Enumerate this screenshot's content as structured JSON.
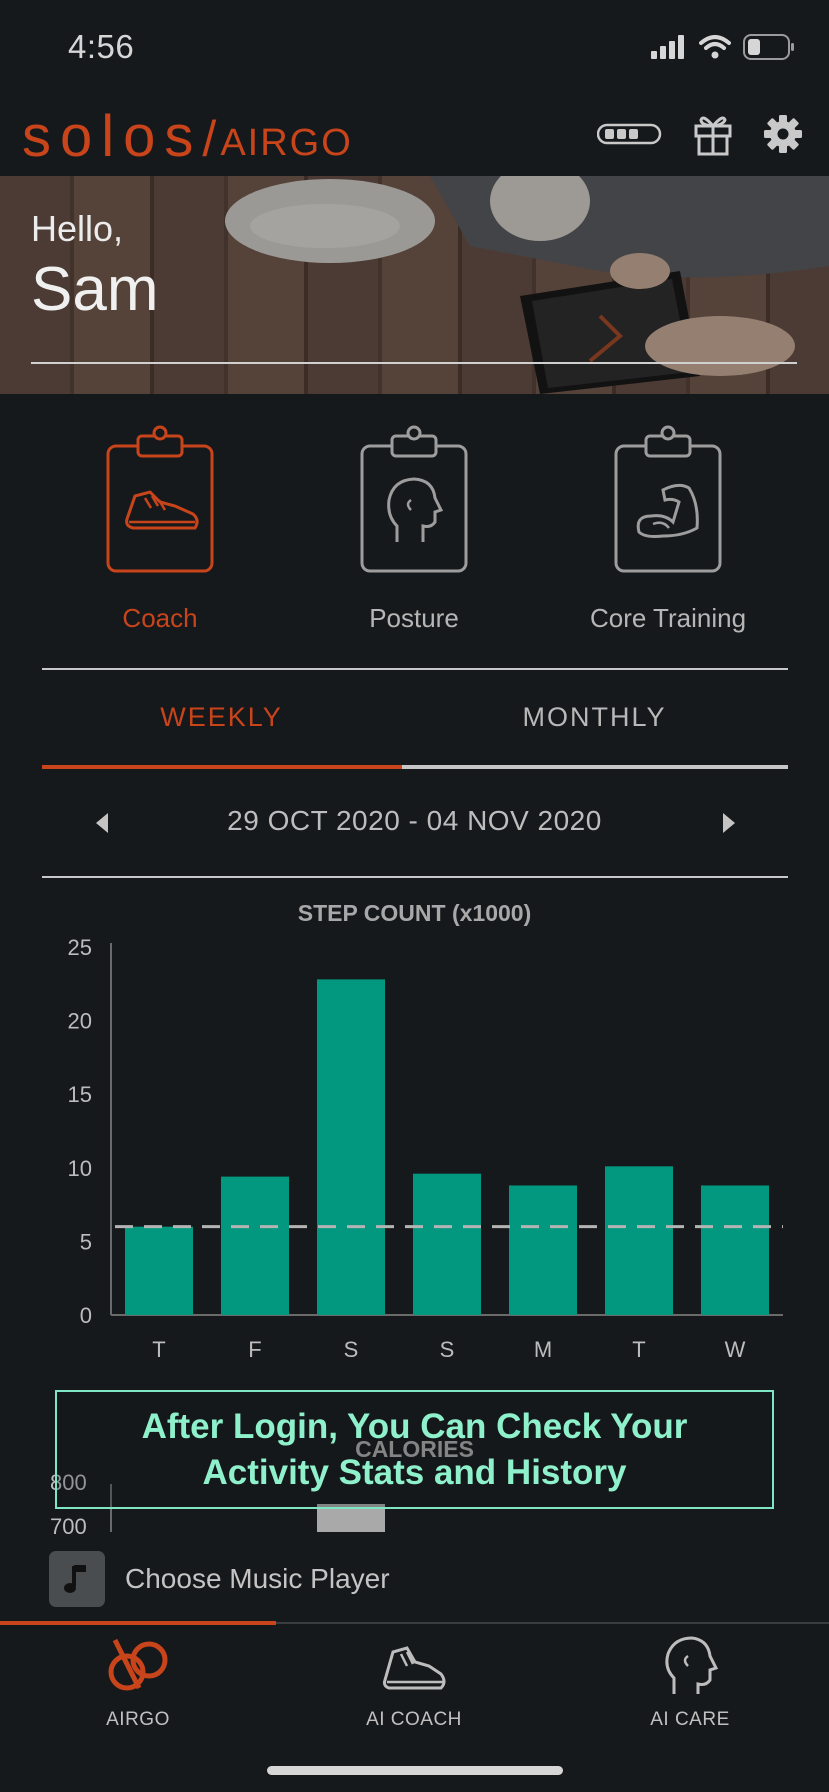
{
  "status_bar": {
    "time": "4:56"
  },
  "header": {
    "brand_solos": "solos",
    "brand_airgo": "AIRGO"
  },
  "hero": {
    "greeting": "Hello,",
    "name": "Sam"
  },
  "programs": [
    {
      "label": "Coach",
      "active": true
    },
    {
      "label": "Posture",
      "active": false
    },
    {
      "label": "Core Training",
      "active": false
    }
  ],
  "tabs": {
    "weekly": "WEEKLY",
    "monthly": "MONTHLY",
    "selected": "weekly"
  },
  "date_nav": {
    "range": "29 OCT 2020 - 04 NOV 2020"
  },
  "chart_data": {
    "type": "bar",
    "title": "STEP COUNT (x1000)",
    "categories": [
      "T",
      "F",
      "S",
      "S",
      "M",
      "T",
      "W"
    ],
    "values": [
      6,
      9.4,
      22.8,
      9.6,
      8.8,
      10.1,
      8.8
    ],
    "ylim": [
      0,
      25
    ],
    "yticks": [
      0,
      5,
      10,
      15,
      20,
      25
    ],
    "reference_line": 6,
    "bar_color": "#029880",
    "grid": false
  },
  "calories_chart": {
    "title": "CALORIES",
    "ticks": [
      "800",
      "700"
    ]
  },
  "overlay": {
    "line1": "After Login, You Can Check Your",
    "line2": "Activity Stats and History"
  },
  "music": {
    "label": "Choose Music Player"
  },
  "bottom_nav": [
    {
      "label": "AIRGO",
      "active": true
    },
    {
      "label": "AI COACH",
      "active": false
    },
    {
      "label": "AI CARE",
      "active": false
    }
  ],
  "colors": {
    "accent": "#c8441b",
    "background": "#16191b",
    "bar": "#029880",
    "callout": "#8ff0cc"
  }
}
